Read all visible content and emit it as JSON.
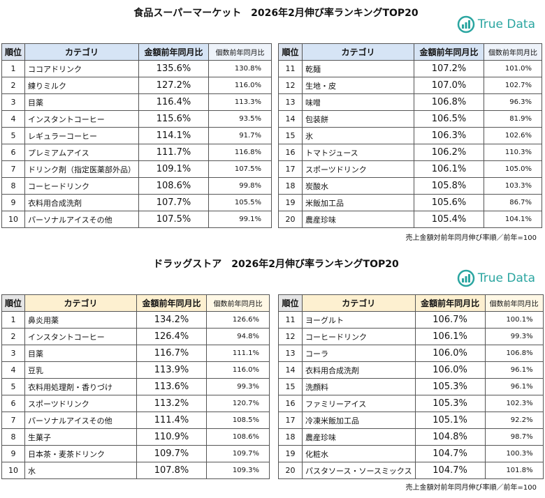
{
  "sections": [
    {
      "title": "食品スーパーマーケット　2026年2月伸び率ランキングTOP20",
      "logo": "True Data",
      "headers": [
        "順位",
        "カテゴリ",
        "金額前年同月比",
        "個数前年同月比"
      ],
      "left": [
        [
          "1",
          "ココアドリンク",
          "135.6%",
          "130.8%"
        ],
        [
          "2",
          "練りミルク",
          "127.2%",
          "116.0%"
        ],
        [
          "3",
          "目薬",
          "116.4%",
          "113.3%"
        ],
        [
          "4",
          "インスタントコーヒー",
          "115.6%",
          "93.5%"
        ],
        [
          "5",
          "レギュラーコーヒー",
          "114.1%",
          "91.7%"
        ],
        [
          "6",
          "プレミアムアイス",
          "111.7%",
          "116.8%"
        ],
        [
          "7",
          "ドリンク剤（指定医薬部外品）",
          "109.1%",
          "107.5%"
        ],
        [
          "8",
          "コーヒードリンク",
          "108.6%",
          "99.8%"
        ],
        [
          "9",
          "衣料用合成洗剤",
          "107.7%",
          "105.5%"
        ],
        [
          "10",
          "パーソナルアイスその他",
          "107.5%",
          "99.1%"
        ]
      ],
      "right": [
        [
          "11",
          "乾麺",
          "107.2%",
          "101.0%"
        ],
        [
          "12",
          "生地・皮",
          "107.0%",
          "102.7%"
        ],
        [
          "13",
          "味噌",
          "106.8%",
          "96.3%"
        ],
        [
          "14",
          "包装餅",
          "106.5%",
          "81.9%"
        ],
        [
          "15",
          "氷",
          "106.3%",
          "102.6%"
        ],
        [
          "16",
          "トマトジュース",
          "106.2%",
          "110.3%"
        ],
        [
          "17",
          "スポーツドリンク",
          "106.1%",
          "105.0%"
        ],
        [
          "18",
          "炭酸水",
          "105.8%",
          "103.3%"
        ],
        [
          "19",
          "米飯加工品",
          "105.6%",
          "86.7%"
        ],
        [
          "20",
          "農産珍味",
          "105.4%",
          "104.1%"
        ]
      ],
      "note": "売上金額対前年同月伸び率順／前年=100"
    },
    {
      "title": "ドラッグストア　2026年2月伸び率ランキングTOP20",
      "logo": "True Data",
      "headers": [
        "順位",
        "カテゴリ",
        "金額前年同月比",
        "個数前年同月比"
      ],
      "left": [
        [
          "1",
          "鼻炎用薬",
          "134.2%",
          "126.6%"
        ],
        [
          "2",
          "インスタントコーヒー",
          "126.4%",
          "94.8%"
        ],
        [
          "3",
          "目薬",
          "116.7%",
          "111.1%"
        ],
        [
          "4",
          "豆乳",
          "113.9%",
          "116.0%"
        ],
        [
          "5",
          "衣料用処理剤・香りづけ",
          "113.6%",
          "99.3%"
        ],
        [
          "6",
          "スポーツドリンク",
          "113.2%",
          "120.7%"
        ],
        [
          "7",
          "パーソナルアイスその他",
          "111.4%",
          "108.5%"
        ],
        [
          "8",
          "生菓子",
          "110.9%",
          "108.6%"
        ],
        [
          "9",
          "日本茶・麦茶ドリンク",
          "109.7%",
          "109.7%"
        ],
        [
          "10",
          "水",
          "107.8%",
          "109.3%"
        ]
      ],
      "right": [
        [
          "11",
          "ヨーグルト",
          "106.7%",
          "100.1%"
        ],
        [
          "12",
          "コーヒードリンク",
          "106.1%",
          "99.3%"
        ],
        [
          "13",
          "コーラ",
          "106.0%",
          "106.8%"
        ],
        [
          "14",
          "衣料用合成洗剤",
          "106.0%",
          "96.1%"
        ],
        [
          "15",
          "洗顔料",
          "105.3%",
          "96.1%"
        ],
        [
          "16",
          "ファミリーアイス",
          "105.3%",
          "102.3%"
        ],
        [
          "17",
          "冷凍米飯加工品",
          "105.1%",
          "92.2%"
        ],
        [
          "18",
          "農産珍味",
          "104.8%",
          "98.7%"
        ],
        [
          "19",
          "化粧水",
          "104.7%",
          "100.3%"
        ],
        [
          "20",
          "パスタソース・ソースミックス",
          "104.7%",
          "101.8%"
        ]
      ],
      "note": "売上金額対前年同月伸び率順／前年=100"
    }
  ]
}
